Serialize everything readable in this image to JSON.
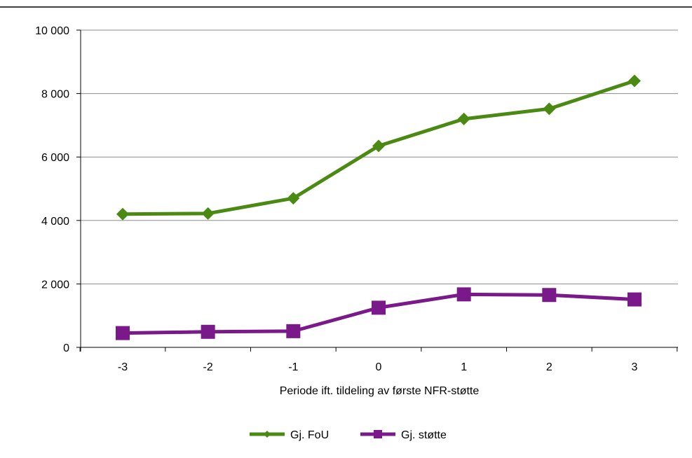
{
  "chart_data": {
    "type": "line",
    "title": "",
    "xlabel": "Periode ift. tildeling av første NFR-støtte",
    "ylabel": "",
    "categories": [
      "-3",
      "-2",
      "-1",
      "0",
      "1",
      "2",
      "3"
    ],
    "y_tick_labels": [
      "0",
      "2 000",
      "4 000",
      "6 000",
      "8 000",
      "10 000"
    ],
    "y_ticks": [
      0,
      2000,
      4000,
      6000,
      8000,
      10000
    ],
    "ylim": [
      0,
      10000
    ],
    "grid": true,
    "legend_position": "bottom",
    "series": [
      {
        "name": "Gj. FoU",
        "color": "#4a8a12",
        "marker": "diamond",
        "values": [
          4200,
          4220,
          4700,
          6350,
          7200,
          7520,
          8400
        ]
      },
      {
        "name": "Gj. støtte",
        "color": "#7a1a8a",
        "marker": "square",
        "values": [
          450,
          490,
          510,
          1250,
          1670,
          1650,
          1510
        ]
      }
    ]
  }
}
